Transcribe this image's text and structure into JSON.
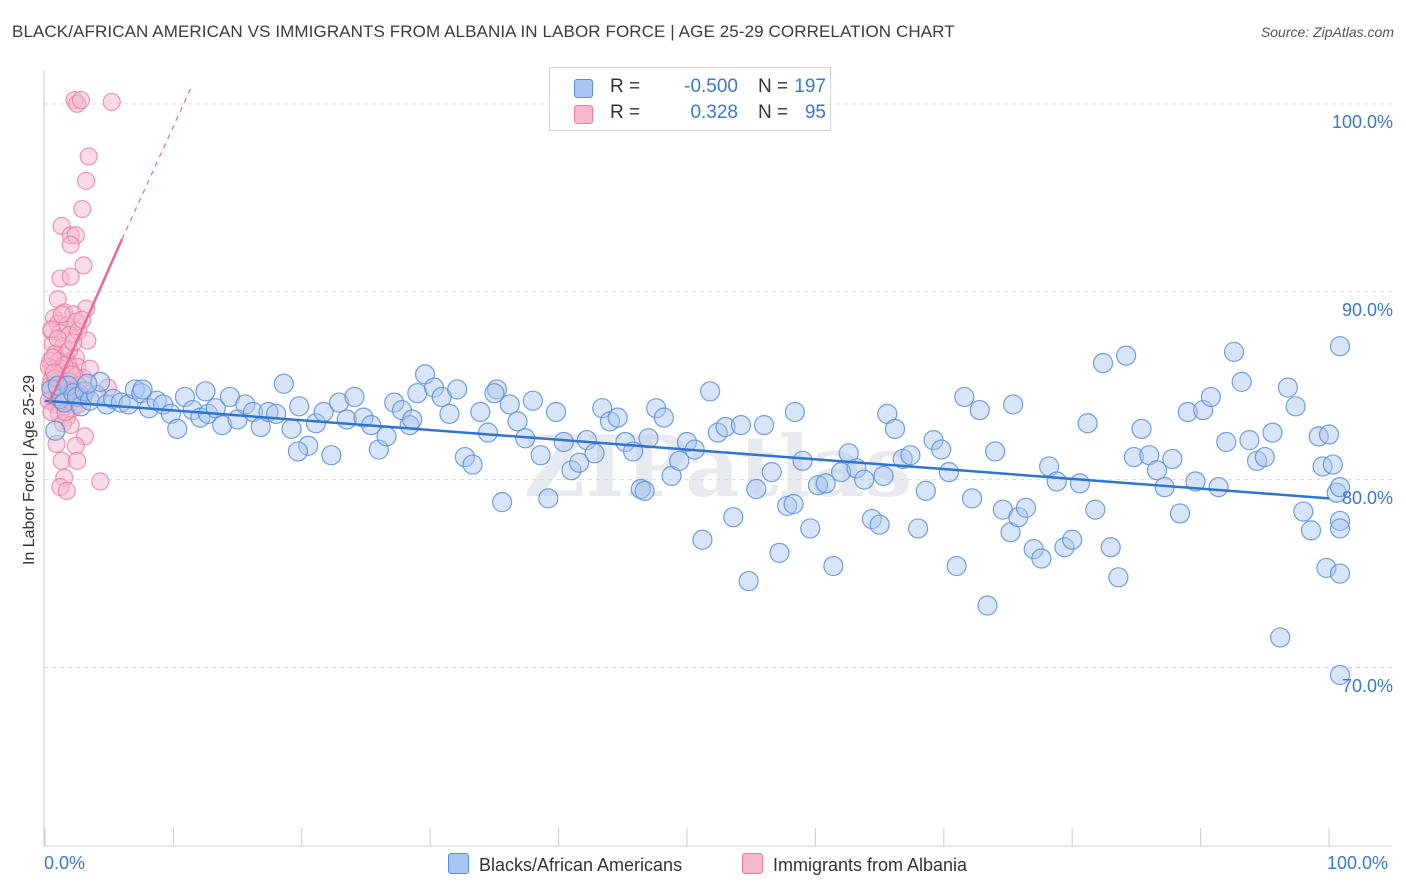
{
  "title": "BLACK/AFRICAN AMERICAN VS IMMIGRANTS FROM ALBANIA IN LABOR FORCE | AGE 25-29 CORRELATION CHART",
  "source": "Source: ZipAtlas.com",
  "watermark": "ZIPatlas",
  "legend": {
    "r_label": "R =",
    "n_label": "N =",
    "rows": [
      {
        "r": "-0.500",
        "n": "197",
        "fill": "#a9c6f0",
        "stroke": "#5b8fd9"
      },
      {
        "r": "0.328",
        "n": "95",
        "fill": "#f6b8cd",
        "stroke": "#e87ea3"
      }
    ]
  },
  "colors": {
    "blue_fill": "#a9c6f0",
    "blue_stroke": "#5b8fd9",
    "blue_line": "#2f74d0",
    "pink_fill": "#f6b8cd",
    "pink_stroke": "#e87ea3",
    "pink_line": "#e8699a",
    "axis_text": "#3a78d0",
    "grid": "#d9d9d9"
  },
  "chart_data": {
    "type": "scatter",
    "title": "BLACK/AFRICAN AMERICAN VS IMMIGRANTS FROM ALBANIA IN LABOR FORCE | AGE 25-29 CORRELATION CHART",
    "xlabel": "",
    "ylabel": "In Labor Force | Age 25-29",
    "xlim": [
      0,
      100
    ],
    "ylim": [
      60.5,
      101.8
    ],
    "x_tick_labels": [
      "0.0%",
      "100.0%"
    ],
    "y_ticks": [
      70,
      80,
      90,
      100
    ],
    "y_tick_labels": [
      "70.0%",
      "80.0%",
      "90.0%",
      "100.0%"
    ],
    "grid": true,
    "legend_position": "bottom",
    "series": [
      {
        "name": "Blacks/African Americans",
        "color": "#a9c6f0",
        "r": -0.5,
        "n": 197,
        "trend": {
          "x": [
            0,
            100
          ],
          "y": [
            84.2,
            79.0
          ]
        },
        "points": [
          [
            0.5,
            84.8
          ],
          [
            0.8,
            82.6
          ],
          [
            1.2,
            84.3
          ],
          [
            1.5,
            84.1
          ],
          [
            1.8,
            85.0
          ],
          [
            2.2,
            84.6
          ],
          [
            2.5,
            84.4
          ],
          [
            2.8,
            83.9
          ],
          [
            3.1,
            84.7
          ],
          [
            3.5,
            84.2
          ],
          [
            4.0,
            84.5
          ],
          [
            4.3,
            85.2
          ],
          [
            4.8,
            84.0
          ],
          [
            5.3,
            84.3
          ],
          [
            5.9,
            84.1
          ],
          [
            6.5,
            84.0
          ],
          [
            7.0,
            84.8
          ],
          [
            7.5,
            84.6
          ],
          [
            8.1,
            83.8
          ],
          [
            8.7,
            84.2
          ],
          [
            9.2,
            84.0
          ],
          [
            9.8,
            83.5
          ],
          [
            10.3,
            82.7
          ],
          [
            10.9,
            84.4
          ],
          [
            11.5,
            83.7
          ],
          [
            12.1,
            83.3
          ],
          [
            12.7,
            83.5
          ],
          [
            13.3,
            83.8
          ],
          [
            13.8,
            82.9
          ],
          [
            14.4,
            84.4
          ],
          [
            15.0,
            83.2
          ],
          [
            15.6,
            84.0
          ],
          [
            16.2,
            83.6
          ],
          [
            16.8,
            82.8
          ],
          [
            17.4,
            83.6
          ],
          [
            18.0,
            83.5
          ],
          [
            18.6,
            85.1
          ],
          [
            19.2,
            82.7
          ],
          [
            19.8,
            83.9
          ],
          [
            20.5,
            81.8
          ],
          [
            21.1,
            83.0
          ],
          [
            21.7,
            83.6
          ],
          [
            22.3,
            81.3
          ],
          [
            22.9,
            84.1
          ],
          [
            23.5,
            83.2
          ],
          [
            24.1,
            84.4
          ],
          [
            24.8,
            83.3
          ],
          [
            25.4,
            82.9
          ],
          [
            26.0,
            81.6
          ],
          [
            26.6,
            82.3
          ],
          [
            27.2,
            84.1
          ],
          [
            27.8,
            83.7
          ],
          [
            28.4,
            82.9
          ],
          [
            29.0,
            84.6
          ],
          [
            29.6,
            85.6
          ],
          [
            30.3,
            84.9
          ],
          [
            30.9,
            84.4
          ],
          [
            31.5,
            83.5
          ],
          [
            32.1,
            84.8
          ],
          [
            32.7,
            81.2
          ],
          [
            33.3,
            80.8
          ],
          [
            33.9,
            83.6
          ],
          [
            34.5,
            82.5
          ],
          [
            35.2,
            84.8
          ],
          [
            35.6,
            78.8
          ],
          [
            36.2,
            84.0
          ],
          [
            36.8,
            83.1
          ],
          [
            37.4,
            82.2
          ],
          [
            38.0,
            84.2
          ],
          [
            38.6,
            81.3
          ],
          [
            39.2,
            79.0
          ],
          [
            39.8,
            83.6
          ],
          [
            40.4,
            82.0
          ],
          [
            41.0,
            80.5
          ],
          [
            41.6,
            80.9
          ],
          [
            42.2,
            82.1
          ],
          [
            42.8,
            81.4
          ],
          [
            43.4,
            83.8
          ],
          [
            44.0,
            83.1
          ],
          [
            44.6,
            83.3
          ],
          [
            45.2,
            82.0
          ],
          [
            45.8,
            81.5
          ],
          [
            46.4,
            79.5
          ],
          [
            47.0,
            82.2
          ],
          [
            47.6,
            83.8
          ],
          [
            48.2,
            83.3
          ],
          [
            48.8,
            80.2
          ],
          [
            49.4,
            81.0
          ],
          [
            50.0,
            82.0
          ],
          [
            50.6,
            81.6
          ],
          [
            51.2,
            76.8
          ],
          [
            51.8,
            84.7
          ],
          [
            52.4,
            82.5
          ],
          [
            53.0,
            82.8
          ],
          [
            53.6,
            78.0
          ],
          [
            54.2,
            82.9
          ],
          [
            54.8,
            74.6
          ],
          [
            55.4,
            79.5
          ],
          [
            56.0,
            82.9
          ],
          [
            56.6,
            80.4
          ],
          [
            57.2,
            76.1
          ],
          [
            57.8,
            78.6
          ],
          [
            58.4,
            83.6
          ],
          [
            59.0,
            81.0
          ],
          [
            59.6,
            77.4
          ],
          [
            60.2,
            79.7
          ],
          [
            60.8,
            79.8
          ],
          [
            61.4,
            75.4
          ],
          [
            62.0,
            80.4
          ],
          [
            62.6,
            81.4
          ],
          [
            63.2,
            80.6
          ],
          [
            63.8,
            80.0
          ],
          [
            64.4,
            77.9
          ],
          [
            65.0,
            77.6
          ],
          [
            65.6,
            83.5
          ],
          [
            66.2,
            82.7
          ],
          [
            66.8,
            81.1
          ],
          [
            67.4,
            81.3
          ],
          [
            68.0,
            77.4
          ],
          [
            68.6,
            79.4
          ],
          [
            69.2,
            82.1
          ],
          [
            69.8,
            81.6
          ],
          [
            70.4,
            80.4
          ],
          [
            71.0,
            75.4
          ],
          [
            71.6,
            84.4
          ],
          [
            72.2,
            79.0
          ],
          [
            72.8,
            83.7
          ],
          [
            73.4,
            73.3
          ],
          [
            74.0,
            81.5
          ],
          [
            74.6,
            78.4
          ],
          [
            75.2,
            77.2
          ],
          [
            75.8,
            78.0
          ],
          [
            76.4,
            78.5
          ],
          [
            77.0,
            76.3
          ],
          [
            77.6,
            75.8
          ],
          [
            78.2,
            80.7
          ],
          [
            78.8,
            79.9
          ],
          [
            79.4,
            76.4
          ],
          [
            80.0,
            76.8
          ],
          [
            80.6,
            79.8
          ],
          [
            81.2,
            83.0
          ],
          [
            81.8,
            78.4
          ],
          [
            82.4,
            86.2
          ],
          [
            83.0,
            76.4
          ],
          [
            83.6,
            74.8
          ],
          [
            84.2,
            86.6
          ],
          [
            84.8,
            81.2
          ],
          [
            85.4,
            82.7
          ],
          [
            86.0,
            81.3
          ],
          [
            86.6,
            80.5
          ],
          [
            87.2,
            79.6
          ],
          [
            87.8,
            81.1
          ],
          [
            88.4,
            78.2
          ],
          [
            89.0,
            83.6
          ],
          [
            89.6,
            79.9
          ],
          [
            90.2,
            83.7
          ],
          [
            90.8,
            84.4
          ],
          [
            91.4,
            79.6
          ],
          [
            92.0,
            82.0
          ],
          [
            92.6,
            86.8
          ],
          [
            93.2,
            85.2
          ],
          [
            93.8,
            82.1
          ],
          [
            94.4,
            81.0
          ],
          [
            95.0,
            81.2
          ],
          [
            95.6,
            82.5
          ],
          [
            96.2,
            71.6
          ],
          [
            96.8,
            84.9
          ],
          [
            97.4,
            83.9
          ],
          [
            98.0,
            78.3
          ],
          [
            98.6,
            77.3
          ],
          [
            99.2,
            82.3
          ],
          [
            99.5,
            80.7
          ],
          [
            99.8,
            75.3
          ],
          [
            100.0,
            82.4
          ],
          [
            100.3,
            80.8
          ],
          [
            100.6,
            79.3
          ],
          [
            101.0,
            75.0
          ],
          [
            101.3,
            69.6
          ],
          [
            101.8,
            87.1
          ],
          [
            102.4,
            79.6
          ],
          [
            103.0,
            77.8
          ],
          [
            103.5,
            77.4
          ],
          [
            75.4,
            84.0
          ],
          [
            65.3,
            80.2
          ],
          [
            58.3,
            78.7
          ],
          [
            46.7,
            79.4
          ],
          [
            35.0,
            84.6
          ],
          [
            28.6,
            83.2
          ],
          [
            19.7,
            81.5
          ],
          [
            12.5,
            84.7
          ],
          [
            7.6,
            84.8
          ],
          [
            3.3,
            85.1
          ],
          [
            1.0,
            85.0
          ]
        ]
      },
      {
        "name": "Immigrants from Albania",
        "color": "#f6b8cd",
        "r": 0.328,
        "n": 95,
        "trend": {
          "x": [
            0.3,
            6.0
          ],
          "y": [
            84.0,
            92.8
          ]
        },
        "trend_extension": {
          "x": [
            6.0,
            11.4
          ],
          "y": [
            92.8,
            100.9
          ]
        },
        "points": [
          [
            2.3,
            100.2
          ],
          [
            2.5,
            100.0
          ],
          [
            2.8,
            100.2
          ],
          [
            5.2,
            100.1
          ],
          [
            3.4,
            97.2
          ],
          [
            3.2,
            95.9
          ],
          [
            2.9,
            94.4
          ],
          [
            1.3,
            93.5
          ],
          [
            2.0,
            93.0
          ],
          [
            2.4,
            93.0
          ],
          [
            2.0,
            92.5
          ],
          [
            3.0,
            91.4
          ],
          [
            1.2,
            90.7
          ],
          [
            2.0,
            90.8
          ],
          [
            3.2,
            89.1
          ],
          [
            1.0,
            89.6
          ],
          [
            1.5,
            88.9
          ],
          [
            2.2,
            88.8
          ],
          [
            0.7,
            88.6
          ],
          [
            1.0,
            88.3
          ],
          [
            1.7,
            88.2
          ],
          [
            2.4,
            88.4
          ],
          [
            0.5,
            87.9
          ],
          [
            1.2,
            87.8
          ],
          [
            1.9,
            87.7
          ],
          [
            2.6,
            87.9
          ],
          [
            3.3,
            87.4
          ],
          [
            0.6,
            87.2
          ],
          [
            1.4,
            87.1
          ],
          [
            0.8,
            86.7
          ],
          [
            1.6,
            86.6
          ],
          [
            2.4,
            86.5
          ],
          [
            0.4,
            86.3
          ],
          [
            1.1,
            86.3
          ],
          [
            1.8,
            86.2
          ],
          [
            2.5,
            86.0
          ],
          [
            0.6,
            85.9
          ],
          [
            1.3,
            85.9
          ],
          [
            2.0,
            85.8
          ],
          [
            0.9,
            85.6
          ],
          [
            1.6,
            85.5
          ],
          [
            2.3,
            85.5
          ],
          [
            3.0,
            85.4
          ],
          [
            0.5,
            85.3
          ],
          [
            1.2,
            85.2
          ],
          [
            1.9,
            85.2
          ],
          [
            2.6,
            85.0
          ],
          [
            0.7,
            84.9
          ],
          [
            1.4,
            84.8
          ],
          [
            2.1,
            84.8
          ],
          [
            4.9,
            84.9
          ],
          [
            0.9,
            84.6
          ],
          [
            1.6,
            84.5
          ],
          [
            2.3,
            84.5
          ],
          [
            3.0,
            84.4
          ],
          [
            0.6,
            84.3
          ],
          [
            1.3,
            84.2
          ],
          [
            2.0,
            84.1
          ],
          [
            0.8,
            84.0
          ],
          [
            1.5,
            83.9
          ],
          [
            2.2,
            83.8
          ],
          [
            1.1,
            83.5
          ],
          [
            1.7,
            83.3
          ],
          [
            1.4,
            83.0
          ],
          [
            2.0,
            82.9
          ],
          [
            3.1,
            82.3
          ],
          [
            0.9,
            81.9
          ],
          [
            2.4,
            81.8
          ],
          [
            1.3,
            81.0
          ],
          [
            2.5,
            81.0
          ],
          [
            1.5,
            80.1
          ],
          [
            4.3,
            79.9
          ],
          [
            1.2,
            79.6
          ],
          [
            1.7,
            79.4
          ],
          [
            0.5,
            88.0
          ],
          [
            1.0,
            87.5
          ],
          [
            0.3,
            86.0
          ],
          [
            0.4,
            85.0
          ],
          [
            0.3,
            84.2
          ],
          [
            0.5,
            83.6
          ],
          [
            1.8,
            84.3
          ],
          [
            2.7,
            84.6
          ],
          [
            1.9,
            86.9
          ],
          [
            0.8,
            85.4
          ],
          [
            1.5,
            86.1
          ],
          [
            2.2,
            87.3
          ],
          [
            3.5,
            85.9
          ],
          [
            1.1,
            84.4
          ],
          [
            2.9,
            88.5
          ],
          [
            0.6,
            86.5
          ],
          [
            1.3,
            88.8
          ],
          [
            2.6,
            84.0
          ],
          [
            0.7,
            85.7
          ],
          [
            1.6,
            83.6
          ],
          [
            2.1,
            85.6
          ]
        ]
      }
    ]
  },
  "bottom_legend": [
    {
      "label": "Blacks/African Americans",
      "fill": "#a9c6f0",
      "stroke": "#5b8fd9"
    },
    {
      "label": "Immigrants from Albania",
      "fill": "#f6b8cd",
      "stroke": "#e87ea3"
    }
  ]
}
